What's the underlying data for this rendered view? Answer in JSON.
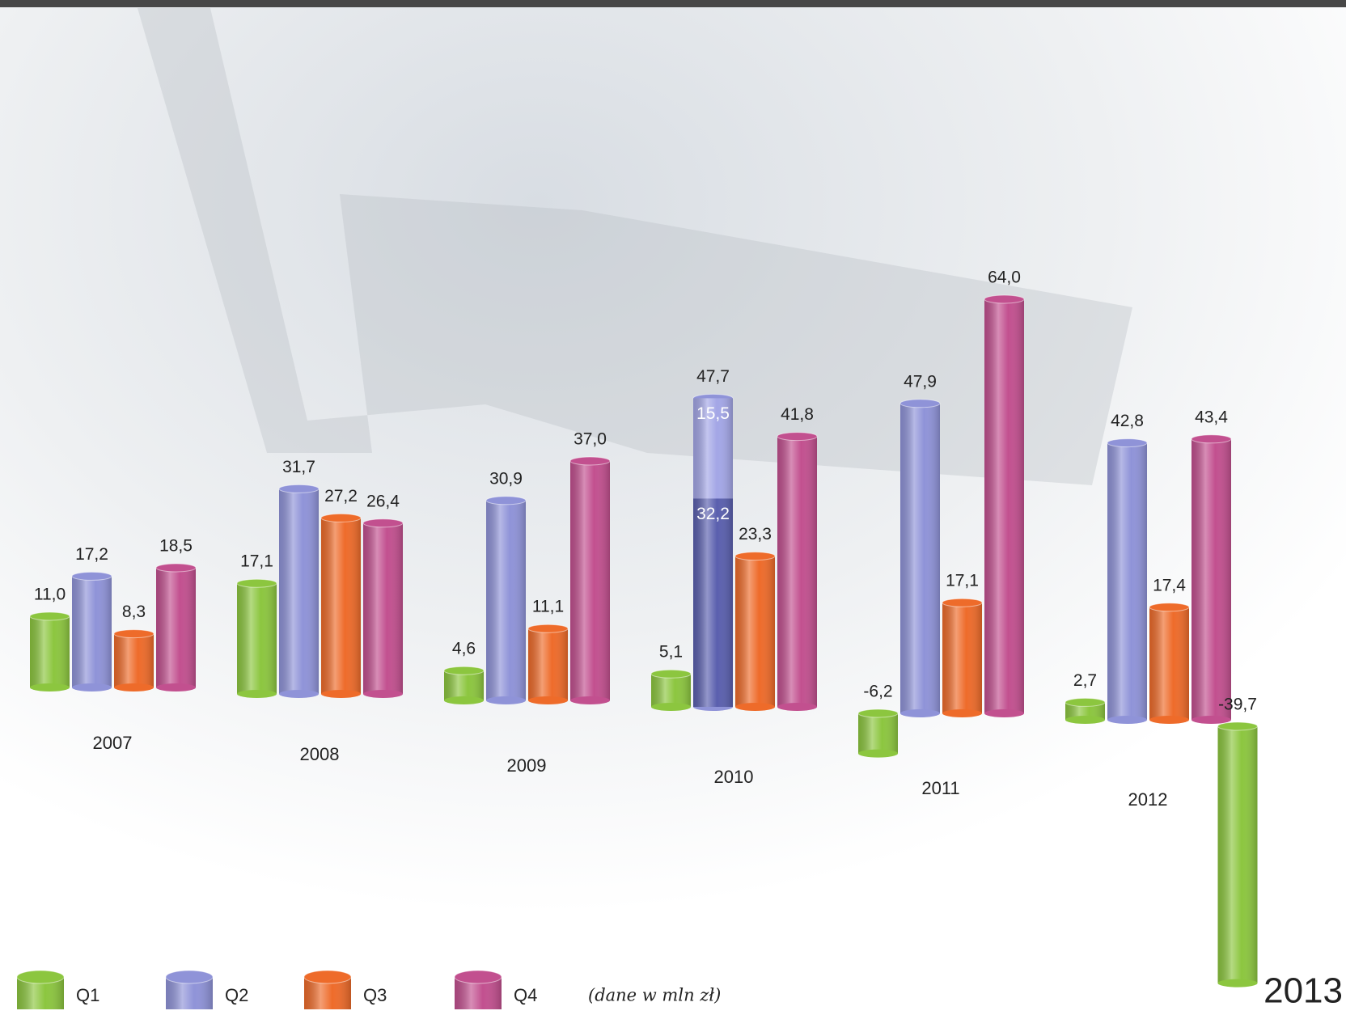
{
  "chart_data": {
    "type": "bar",
    "categories": [
      "2007",
      "2008",
      "2009",
      "2010",
      "2011",
      "2012",
      "2013"
    ],
    "series": [
      {
        "name": "Q1",
        "color": "#8cc63f",
        "values": [
          11.0,
          17.1,
          4.6,
          5.1,
          -6.2,
          2.7,
          -39.7
        ],
        "value_labels": [
          "11,0",
          "17,1",
          "4,6",
          "5,1",
          "-6,2",
          "2,7",
          "-39,7"
        ]
      },
      {
        "name": "Q2",
        "color": "#8f93d8",
        "values": [
          17.2,
          31.7,
          30.9,
          47.7,
          47.9,
          42.8,
          null
        ],
        "value_labels": [
          "17,2",
          "31,7",
          "30,9",
          "47,7",
          "47,9",
          "42,8",
          null
        ],
        "segments": [
          null,
          null,
          null,
          [
            32.2,
            15.5
          ],
          null,
          null,
          null
        ],
        "segment_labels": [
          null,
          null,
          null,
          [
            "32,2",
            "15,5"
          ],
          null,
          null,
          null
        ],
        "segment_colors": [
          "#5a5fae",
          "#a3a6e6"
        ]
      },
      {
        "name": "Q3",
        "color": "#ee6b2a",
        "values": [
          8.3,
          27.2,
          11.1,
          23.3,
          17.1,
          17.4,
          null
        ],
        "value_labels": [
          "8,3",
          "27,2",
          "11,1",
          "23,3",
          "17,1",
          "17,4",
          null
        ]
      },
      {
        "name": "Q4",
        "color": "#c2508f",
        "values": [
          18.5,
          26.4,
          37.0,
          41.8,
          64.0,
          43.4,
          null
        ],
        "value_labels": [
          "18,5",
          "26,4",
          "37,0",
          "41,8",
          "64,0",
          "43,4",
          null
        ]
      }
    ],
    "note": "(dane w mln zł)"
  }
}
